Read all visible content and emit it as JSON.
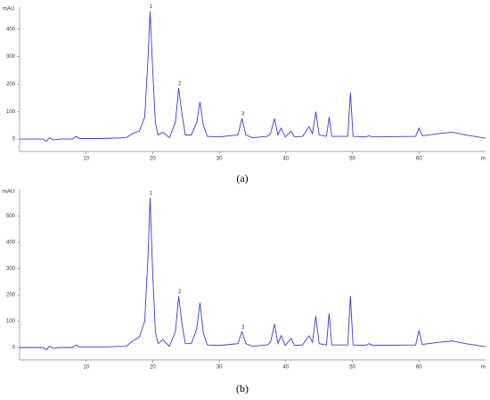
{
  "chart_data": [
    {
      "type": "line",
      "y_label": "mAU",
      "x_label": "m",
      "caption": "(a)",
      "color": "#3a3ad6",
      "annotations": [
        "1",
        "2",
        "3"
      ],
      "xlim": [
        0,
        70
      ],
      "xticks": [
        10,
        20,
        30,
        40,
        50,
        60
      ],
      "ylim": [
        -45,
        480
      ],
      "yticks": [
        0,
        100,
        200,
        300,
        400
      ],
      "x": [
        0,
        3.5,
        4,
        4.5,
        5,
        6,
        8,
        8.5,
        9,
        12,
        16,
        17,
        18,
        18.8,
        19.3,
        19.6,
        20,
        20.4,
        20.8,
        21.5,
        22.5,
        23.4,
        23.9,
        24.4,
        24.9,
        25.8,
        26.6,
        27.1,
        27.6,
        28.2,
        30,
        32.8,
        33.4,
        34,
        35,
        37.2,
        37.7,
        38.3,
        38.8,
        39.3,
        39.9,
        40.8,
        41.3,
        42.5,
        43.5,
        44,
        44.5,
        45,
        46.1,
        46.5,
        46.9,
        49.3,
        49.7,
        50.1,
        52,
        52.5,
        53,
        59.5,
        60,
        60.5,
        63,
        65,
        67,
        70
      ],
      "values": [
        0,
        0,
        -8,
        5,
        -3,
        0,
        0,
        10,
        2,
        2,
        5,
        20,
        30,
        80,
        300,
        465,
        250,
        60,
        15,
        25,
        5,
        60,
        185,
        90,
        15,
        15,
        60,
        135,
        50,
        10,
        8,
        15,
        75,
        15,
        5,
        10,
        20,
        75,
        15,
        40,
        8,
        28,
        8,
        10,
        45,
        20,
        100,
        15,
        10,
        80,
        10,
        10,
        170,
        10,
        8,
        12,
        8,
        10,
        40,
        12,
        20,
        25,
        15,
        3
      ]
    },
    {
      "type": "line",
      "y_label": "mAU",
      "x_label": "m",
      "caption": "(b)",
      "color": "#3a3ad6",
      "annotations": [
        "1",
        "2",
        "3"
      ],
      "xlim": [
        0,
        70
      ],
      "xticks": [
        10,
        20,
        30,
        40,
        50,
        60
      ],
      "ylim": [
        -47,
        600
      ],
      "yticks": [
        0,
        100,
        200,
        300,
        400,
        500
      ],
      "x": [
        0,
        3.5,
        4,
        4.5,
        5,
        6,
        8,
        8.5,
        9,
        12,
        16,
        17,
        18,
        18.8,
        19.3,
        19.6,
        20,
        20.4,
        20.8,
        21.5,
        22.5,
        23.4,
        23.9,
        24.4,
        24.9,
        25.8,
        26.6,
        27.1,
        27.6,
        28.2,
        30,
        32.8,
        33.4,
        34,
        35,
        37.2,
        37.7,
        38.3,
        38.8,
        39.3,
        39.9,
        40.8,
        41.3,
        42.5,
        43.5,
        44,
        44.5,
        45,
        46.1,
        46.5,
        46.9,
        49.3,
        49.7,
        50.1,
        52,
        52.5,
        53,
        59.5,
        60,
        60.5,
        63,
        65,
        67,
        70
      ],
      "values": [
        0,
        0,
        -8,
        5,
        -3,
        0,
        0,
        10,
        2,
        2,
        5,
        25,
        40,
        100,
        350,
        570,
        280,
        60,
        15,
        30,
        5,
        60,
        195,
        90,
        15,
        15,
        70,
        170,
        55,
        10,
        8,
        15,
        60,
        15,
        5,
        10,
        20,
        90,
        15,
        45,
        8,
        35,
        8,
        10,
        45,
        20,
        120,
        15,
        10,
        130,
        10,
        10,
        195,
        10,
        8,
        15,
        8,
        10,
        65,
        12,
        20,
        25,
        15,
        3
      ]
    }
  ]
}
